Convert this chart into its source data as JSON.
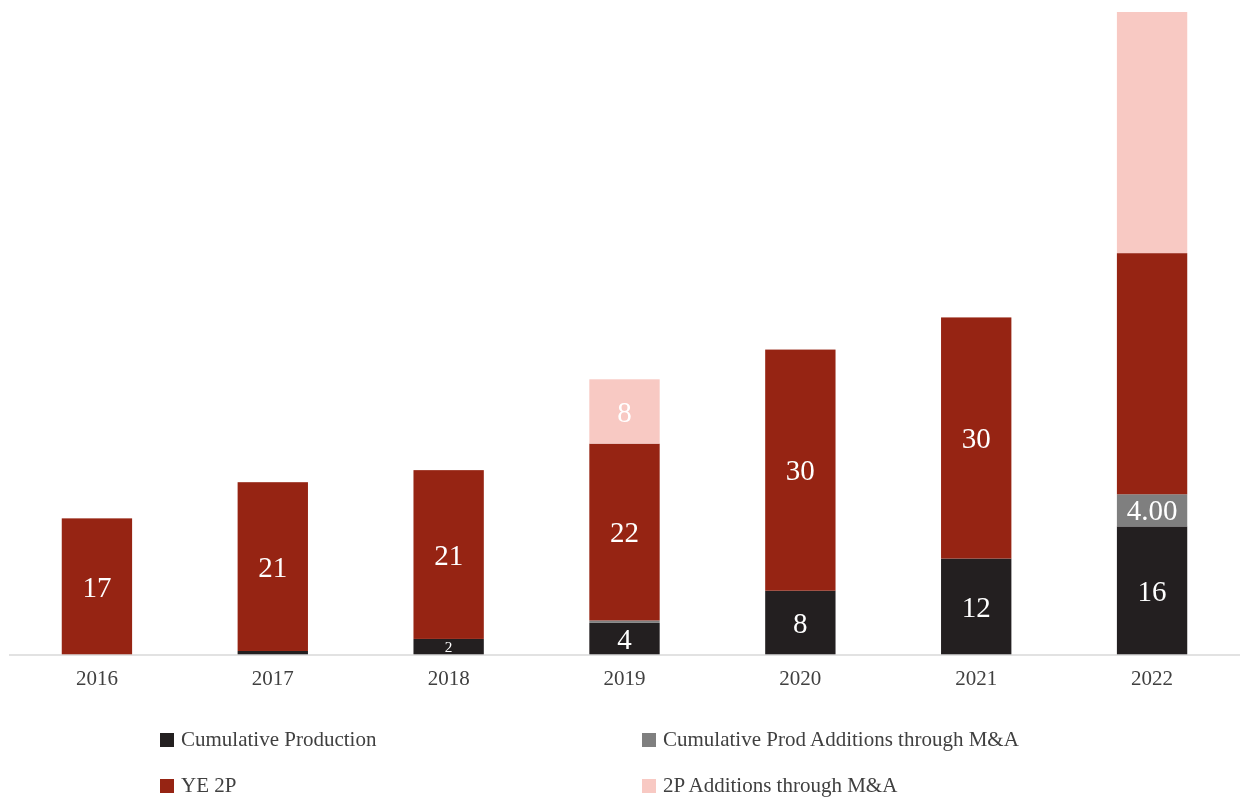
{
  "chart_data": {
    "type": "bar",
    "stacked": true,
    "categories": [
      "2016",
      "2017",
      "2018",
      "2019",
      "2020",
      "2021",
      "2022"
    ],
    "legend": "bottom",
    "series": [
      {
        "name": "Cumulative Production",
        "color": "#231f20",
        "values": [
          null,
          0.5,
          2,
          4,
          8,
          12,
          16
        ],
        "value_labels": [
          null,
          null,
          "2",
          "4",
          "8",
          "12",
          "16"
        ]
      },
      {
        "name": "Cumulative Prod Additions through M&A",
        "color": "#7f7f7f",
        "values": [
          null,
          null,
          null,
          0.3,
          null,
          null,
          4
        ],
        "value_labels": [
          null,
          null,
          null,
          null,
          null,
          null,
          "4.00"
        ]
      },
      {
        "name": "YE 2P",
        "color": "#962413",
        "values": [
          17,
          21,
          21,
          22,
          30,
          30,
          30
        ],
        "value_labels": [
          "17",
          "21",
          "21",
          "22",
          "30",
          "30",
          null
        ]
      },
      {
        "name": "2P Additions through M&A",
        "color": "#f8c9c3",
        "values": [
          null,
          null,
          null,
          8,
          null,
          null,
          30
        ],
        "value_labels": [
          null,
          null,
          null,
          "8",
          null,
          null,
          null
        ]
      }
    ]
  }
}
